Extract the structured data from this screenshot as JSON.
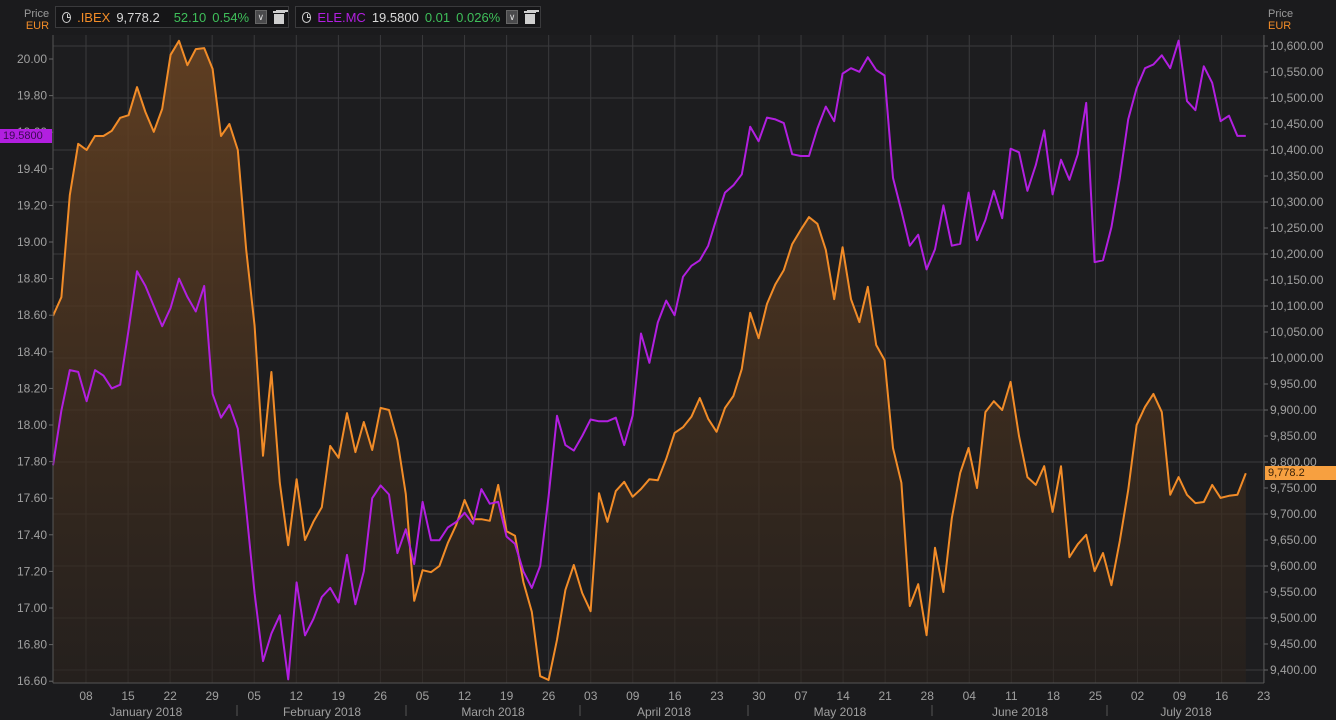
{
  "legend": [
    {
      "symbol": ".IBEX",
      "symbol_color": "#f28c28",
      "last": "9,778.2",
      "change": "52.10",
      "change_pct": "0.54%"
    },
    {
      "symbol": "ELE.MC",
      "symbol_color": "#b21fe0",
      "last": "19.5800",
      "change": "0.01",
      "change_pct": "0.026%"
    }
  ],
  "left_axis": {
    "title": "Price",
    "currency": "EUR",
    "ticks": [
      "20.00",
      "19.80",
      "19.60",
      "19.40",
      "19.20",
      "19.00",
      "18.80",
      "18.60",
      "18.40",
      "18.20",
      "18.00",
      "17.80",
      "17.60",
      "17.40",
      "17.20",
      "17.00",
      "16.80",
      "16.60"
    ],
    "last_tag": "19.5800",
    "last_tag_color": "#b21fe0"
  },
  "right_axis": {
    "title": "Price",
    "currency": "EUR",
    "ticks": [
      "10,600.00",
      "10,550.00",
      "10,500.00",
      "10,450.00",
      "10,400.00",
      "10,350.00",
      "10,300.00",
      "10,250.00",
      "10,200.00",
      "10,150.00",
      "10,100.00",
      "10,050.00",
      "10,000.00",
      "9,950.00",
      "9,900.00",
      "9,850.00",
      "9,800.00",
      "9,750.00",
      "9,700.00",
      "9,650.00",
      "9,600.00",
      "9,550.00",
      "9,500.00",
      "9,450.00",
      "9,400.00"
    ],
    "last_tag": "9,778.2",
    "last_tag_color": "#f7a040"
  },
  "x_axis": {
    "day_ticks": [
      "08",
      "15",
      "22",
      "29",
      "05",
      "12",
      "19",
      "26",
      "05",
      "12",
      "19",
      "26",
      "03",
      "09",
      "16",
      "23",
      "30",
      "07",
      "14",
      "21",
      "28",
      "04",
      "11",
      "18",
      "25",
      "02",
      "09",
      "16",
      "23"
    ],
    "months": [
      "January 2018",
      "February 2018",
      "March 2018",
      "April 2018",
      "May 2018",
      "June 2018",
      "July 2018"
    ]
  },
  "chart_data": {
    "type": "line",
    "title": "",
    "xlabel": "",
    "ylabel": "Price EUR",
    "grid": true,
    "legend_position": "top-left",
    "x_range": [
      "2018-01-02",
      "2018-07-24"
    ],
    "series": [
      {
        "name": ".IBEX",
        "axis": "right",
        "color": "#f28c28",
        "area": true,
        "ylim": [
          9375,
          10625
        ],
        "values": [
          10081,
          10117,
          10313,
          10412,
          10400,
          10427,
          10427,
          10437,
          10462,
          10467,
          10521,
          10473,
          10435,
          10479,
          10583,
          10610,
          10563,
          10594,
          10596,
          10556,
          10427,
          10450,
          10400,
          10208,
          10062,
          9812,
          9973,
          9760,
          9640,
          9767,
          9650,
          9685,
          9713,
          9831,
          9808,
          9894,
          9819,
          9877,
          9823,
          9904,
          9900,
          9842,
          9738,
          9533,
          9592,
          9588,
          9600,
          9644,
          9679,
          9727,
          9690,
          9690,
          9687,
          9756,
          9667,
          9658,
          9569,
          9512,
          9388,
          9381,
          9458,
          9554,
          9602,
          9548,
          9513,
          9740,
          9685,
          9744,
          9762,
          9733,
          9748,
          9767,
          9765,
          9806,
          9856,
          9867,
          9887,
          9923,
          9883,
          9858,
          9904,
          9927,
          9979,
          10087,
          10038,
          10104,
          10142,
          10169,
          10219,
          10246,
          10271,
          10258,
          10208,
          10113,
          10213,
          10113,
          10069,
          10137,
          10025,
          9996,
          9827,
          9760,
          9523,
          9565,
          9467,
          9635,
          9550,
          9692,
          9779,
          9827,
          9750,
          9896,
          9917,
          9900,
          9954,
          9850,
          9771,
          9756,
          9792,
          9704,
          9792,
          9617,
          9642,
          9660,
          9590,
          9625,
          9563,
          9648,
          9746,
          9871,
          9906,
          9931,
          9896,
          9737,
          9771,
          9737,
          9721,
          9723,
          9756,
          9731,
          9735,
          9737,
          9778.2
        ]
      },
      {
        "name": "ELE.MC",
        "axis": "left",
        "color": "#b21fe0",
        "area": false,
        "ylim": [
          16.57,
          20.13
        ],
        "values": [
          17.78,
          18.08,
          18.3,
          18.29,
          18.13,
          18.3,
          18.27,
          18.2,
          18.22,
          18.52,
          18.84,
          18.76,
          18.65,
          18.54,
          18.64,
          18.8,
          18.7,
          18.62,
          18.76,
          18.17,
          18.04,
          18.11,
          17.98,
          17.54,
          17.08,
          16.71,
          16.86,
          16.96,
          16.61,
          17.14,
          16.85,
          16.94,
          17.06,
          17.11,
          17.03,
          17.29,
          17.02,
          17.2,
          17.6,
          17.67,
          17.62,
          17.3,
          17.43,
          17.24,
          17.58,
          17.37,
          17.37,
          17.44,
          17.47,
          17.52,
          17.46,
          17.65,
          17.57,
          17.58,
          17.39,
          17.35,
          17.2,
          17.11,
          17.23,
          17.61,
          18.05,
          17.89,
          17.86,
          17.94,
          18.03,
          18.02,
          18.02,
          18.04,
          17.89,
          18.05,
          18.5,
          18.34,
          18.56,
          18.68,
          18.6,
          18.81,
          18.87,
          18.9,
          18.98,
          19.13,
          19.27,
          19.31,
          19.37,
          19.63,
          19.55,
          19.68,
          19.67,
          19.65,
          19.48,
          19.47,
          19.47,
          19.62,
          19.74,
          19.66,
          19.92,
          19.95,
          19.93,
          20.01,
          19.94,
          19.91,
          19.35,
          19.17,
          18.98,
          19.04,
          18.85,
          18.96,
          19.2,
          18.98,
          18.99,
          19.27,
          19.01,
          19.12,
          19.28,
          19.13,
          19.51,
          19.49,
          19.28,
          19.42,
          19.61,
          19.26,
          19.45,
          19.34,
          19.48,
          19.76,
          18.89,
          18.9,
          19.08,
          19.35,
          19.67,
          19.84,
          19.95,
          19.97,
          20.02,
          19.95,
          20.1,
          19.77,
          19.72,
          19.96,
          19.87,
          19.66,
          19.69,
          19.58,
          19.58
        ]
      }
    ]
  }
}
